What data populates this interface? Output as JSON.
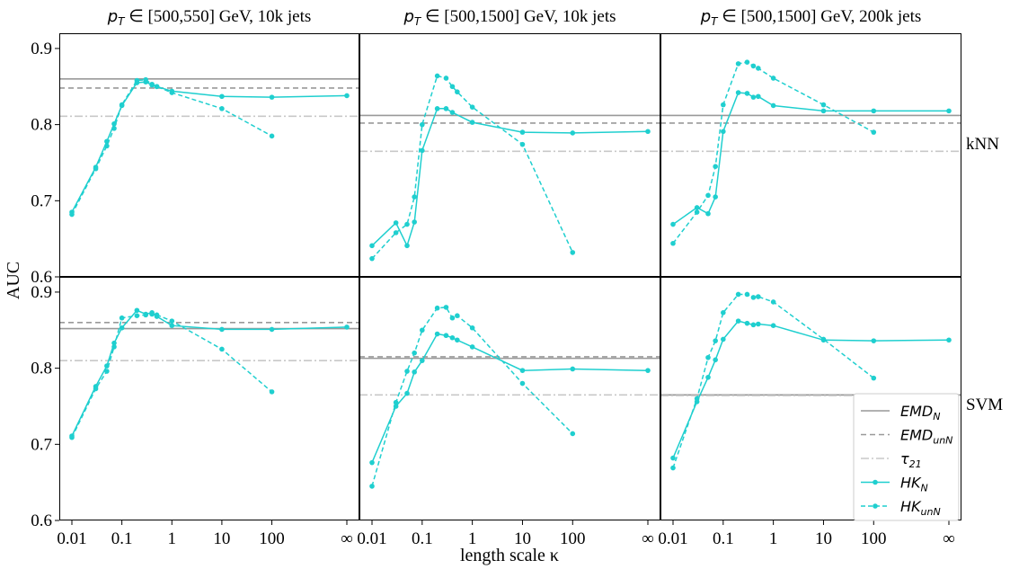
{
  "figure": {
    "ylabel": "AUC",
    "xlabel": "length scale κ",
    "column_titles": [
      {
        "symbol": "p",
        "subscript": "T",
        "text": " ∈ [500,550] GeV, 10k jets"
      },
      {
        "symbol": "p",
        "subscript": "T",
        "text": " ∈ [500,1500] GeV, 10k jets"
      },
      {
        "symbol": "p",
        "subscript": "T",
        "text": " ∈ [500,1500] GeV, 200k jets"
      }
    ],
    "row_labels": [
      "kNN",
      "SVM"
    ],
    "x_tick_labels": [
      "0.01",
      "0.1",
      "1",
      "10",
      "100",
      "∞"
    ],
    "y_tick_labels": [
      "0.6",
      "0.7",
      "0.8",
      "0.9"
    ],
    "legend": [
      {
        "main": "EMD",
        "sub": "N"
      },
      {
        "main": "EMD",
        "sub": "unN"
      },
      {
        "main": "τ",
        "sub": "21"
      },
      {
        "main": "HK",
        "sub": "N"
      },
      {
        "main": "HK",
        "sub": "unN"
      }
    ],
    "colors": {
      "emd": "#999999",
      "tau": "#c8c8c8",
      "hk": "#1fcfcf",
      "frame": "#000000"
    }
  },
  "chart_data": {
    "type": "line",
    "x_scale": "log10 with infinity slot",
    "x_ticks": [
      "0.01",
      "0.1",
      "1",
      "10",
      "100",
      "inf"
    ],
    "ylim": [
      0.6,
      0.92
    ],
    "panels": [
      {
        "row": "kNN",
        "col": 0,
        "emd_n": 0.86,
        "emd_unn": 0.848,
        "tau21": 0.811,
        "hk_n_x": [
          0.01,
          0.03,
          0.05,
          0.07,
          0.1,
          0.2,
          0.3,
          0.4,
          0.5,
          1,
          10,
          100,
          "inf"
        ],
        "hk_n": [
          0.685,
          0.744,
          0.778,
          0.801,
          0.825,
          0.855,
          0.856,
          0.852,
          0.85,
          0.844,
          0.837,
          0.836,
          0.838
        ],
        "hk_unn_x": [
          0.01,
          0.03,
          0.05,
          0.07,
          0.1,
          0.2,
          0.3,
          0.4,
          0.5,
          1,
          10,
          100
        ],
        "hk_unn": [
          0.682,
          0.742,
          0.772,
          0.795,
          0.826,
          0.858,
          0.859,
          0.853,
          0.85,
          0.842,
          0.821,
          0.785
        ]
      },
      {
        "row": "kNN",
        "col": 1,
        "emd_n": 0.812,
        "emd_unn": 0.802,
        "tau21": 0.765,
        "hk_n_x": [
          0.01,
          0.03,
          0.05,
          0.07,
          0.1,
          0.2,
          0.3,
          0.4,
          1,
          10,
          100,
          "inf"
        ],
        "hk_n": [
          0.641,
          0.671,
          0.641,
          0.672,
          0.766,
          0.821,
          0.821,
          0.816,
          0.803,
          0.79,
          0.789,
          0.791
        ],
        "hk_unn_x": [
          0.01,
          0.03,
          0.05,
          0.07,
          0.1,
          0.2,
          0.3,
          0.4,
          0.5,
          1,
          10,
          100
        ],
        "hk_unn": [
          0.624,
          0.658,
          0.669,
          0.705,
          0.8,
          0.864,
          0.861,
          0.85,
          0.843,
          0.823,
          0.774,
          0.632
        ]
      },
      {
        "row": "kNN",
        "col": 2,
        "emd_n": 0.812,
        "emd_unn": 0.802,
        "tau21": 0.765,
        "hk_n_x": [
          0.01,
          0.03,
          0.05,
          0.07,
          0.1,
          0.2,
          0.3,
          0.4,
          0.5,
          1,
          10,
          100,
          "inf"
        ],
        "hk_n": [
          0.669,
          0.691,
          0.683,
          0.705,
          0.791,
          0.842,
          0.841,
          0.836,
          0.837,
          0.825,
          0.818,
          0.818,
          0.818
        ],
        "hk_unn_x": [
          0.01,
          0.03,
          0.05,
          0.07,
          0.1,
          0.2,
          0.3,
          0.4,
          0.5,
          1,
          10,
          100
        ],
        "hk_unn": [
          0.644,
          0.685,
          0.707,
          0.745,
          0.826,
          0.88,
          0.882,
          0.877,
          0.874,
          0.861,
          0.826,
          0.79
        ]
      },
      {
        "row": "SVM",
        "col": 0,
        "emd_n": 0.852,
        "emd_unn": 0.86,
        "tau21": 0.81,
        "hk_n_x": [
          0.01,
          0.03,
          0.05,
          0.07,
          0.1,
          0.2,
          0.3,
          0.4,
          0.5,
          1,
          10,
          100,
          "inf"
        ],
        "hk_n": [
          0.711,
          0.776,
          0.803,
          0.833,
          0.853,
          0.876,
          0.871,
          0.873,
          0.868,
          0.856,
          0.851,
          0.851,
          0.854
        ],
        "hk_unn_x": [
          0.01,
          0.03,
          0.05,
          0.07,
          0.1,
          0.2,
          0.3,
          0.4,
          0.5,
          1,
          10,
          100
        ],
        "hk_unn": [
          0.709,
          0.773,
          0.796,
          0.828,
          0.866,
          0.869,
          0.87,
          0.871,
          0.87,
          0.862,
          0.825,
          0.769
        ]
      },
      {
        "row": "SVM",
        "col": 1,
        "emd_n": 0.813,
        "emd_unn": 0.815,
        "tau21": 0.765,
        "hk_n_x": [
          0.01,
          0.03,
          0.05,
          0.07,
          0.1,
          0.2,
          0.3,
          0.4,
          0.5,
          1,
          10,
          100,
          "inf"
        ],
        "hk_n": [
          0.676,
          0.75,
          0.767,
          0.795,
          0.81,
          0.845,
          0.843,
          0.84,
          0.837,
          0.828,
          0.797,
          0.799,
          0.797
        ],
        "hk_unn_x": [
          0.01,
          0.03,
          0.05,
          0.07,
          0.1,
          0.2,
          0.3,
          0.4,
          0.5,
          1,
          10,
          100
        ],
        "hk_unn": [
          0.645,
          0.755,
          0.796,
          0.82,
          0.85,
          0.879,
          0.88,
          0.866,
          0.869,
          0.853,
          0.78,
          0.714
        ]
      },
      {
        "row": "SVM",
        "col": 2,
        "emd_n": 0.765,
        "emd_unn": 0.765,
        "tau21": 0.764,
        "hk_n_x": [
          0.01,
          0.03,
          0.05,
          0.07,
          0.1,
          0.2,
          0.3,
          0.4,
          0.5,
          1,
          10,
          100,
          "inf"
        ],
        "hk_n": [
          0.682,
          0.756,
          0.788,
          0.811,
          0.838,
          0.862,
          0.859,
          0.857,
          0.858,
          0.856,
          0.837,
          0.836,
          0.837
        ],
        "hk_unn_x": [
          0.01,
          0.03,
          0.05,
          0.07,
          0.1,
          0.2,
          0.3,
          0.4,
          0.5,
          1,
          10,
          100
        ],
        "hk_unn": [
          0.669,
          0.76,
          0.814,
          0.836,
          0.873,
          0.897,
          0.897,
          0.893,
          0.894,
          0.887,
          0.838,
          0.787
        ]
      }
    ]
  }
}
